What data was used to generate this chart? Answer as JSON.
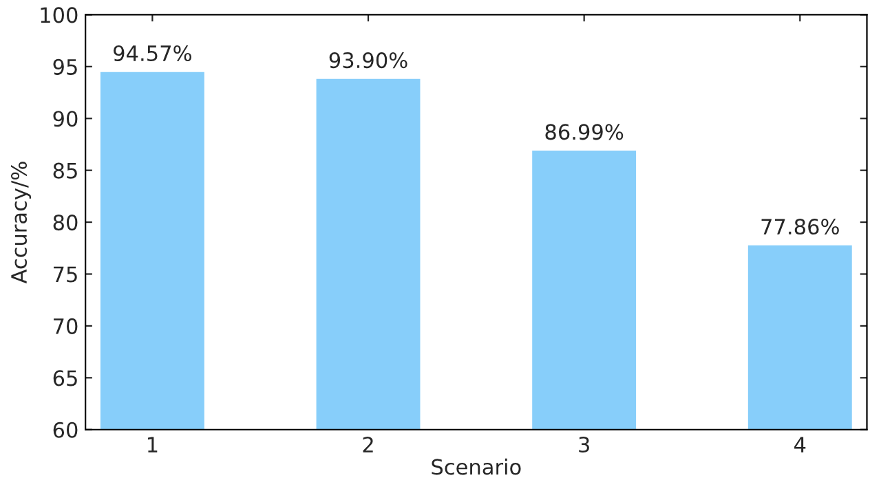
{
  "chart_data": {
    "type": "bar",
    "xlabel": "Scenario",
    "ylabel": "Accuracy/%",
    "categories": [
      "1",
      "2",
      "3",
      "4"
    ],
    "values": [
      94.57,
      93.9,
      86.99,
      77.86
    ],
    "value_labels": [
      "94.57%",
      "93.90%",
      "86.99%",
      "77.86%"
    ],
    "color": "#87cefa",
    "ylim": [
      60,
      100
    ],
    "yticks": [
      60,
      65,
      70,
      75,
      80,
      85,
      90,
      95,
      100
    ],
    "grid": false,
    "legend": false
  }
}
